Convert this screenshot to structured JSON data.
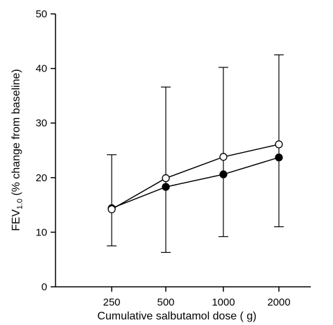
{
  "chart_data": {
    "type": "line",
    "xlabel": "Cumulative salbutamol dose (   g)",
    "ylabel_main": "FEV",
    "ylabel_sub": "1.0",
    "ylabel_rest": " (% change from baseline)",
    "categories": [
      "250",
      "500",
      "1000",
      "2000"
    ],
    "ylim": [
      0,
      50
    ],
    "yticks": [
      "0",
      "10",
      "20",
      "30",
      "40",
      "50"
    ],
    "grid": false,
    "series": [
      {
        "marker": "open-circle",
        "values": [
          14.2,
          19.9,
          23.8,
          26.1
        ],
        "error_upper": [
          24.2,
          36.6,
          40.2,
          42.5
        ],
        "error_lower": [
          7.5,
          6.3,
          9.2,
          11.0
        ]
      },
      {
        "marker": "filled-circle",
        "values": [
          14.4,
          18.3,
          20.6,
          23.7
        ],
        "error_upper": [],
        "error_lower": []
      }
    ]
  }
}
